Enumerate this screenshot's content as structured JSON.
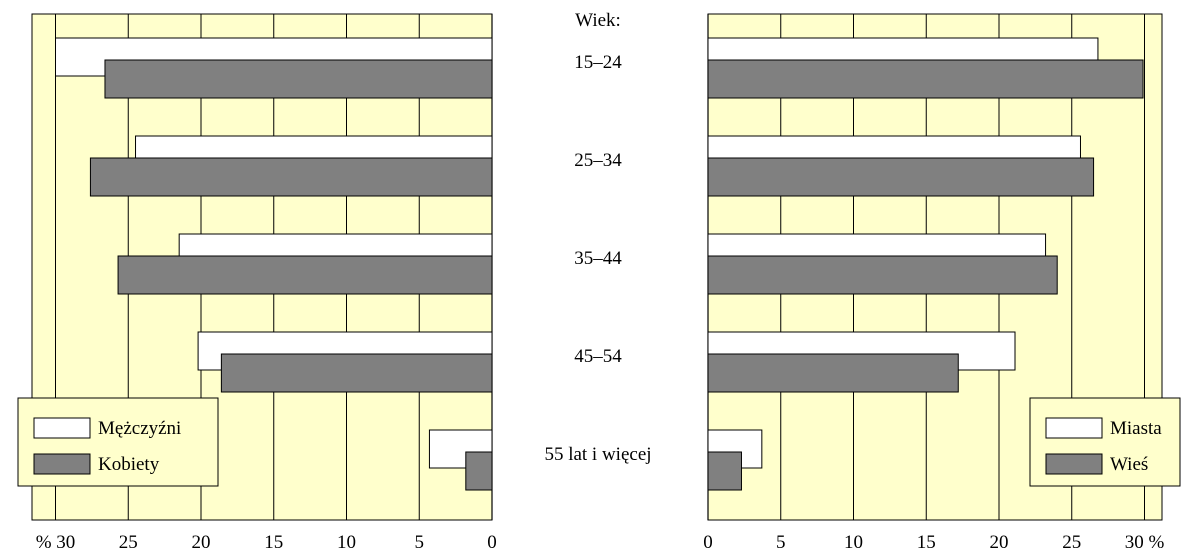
{
  "chart_data": [
    {
      "type": "bar",
      "orientation": "horizontal",
      "direction": "right-to-left",
      "categories": [
        "15–24",
        "25–34",
        "35–44",
        "45–54",
        "55 lat i więcej"
      ],
      "series": [
        {
          "name": "Mężczyźni",
          "color": "#ffffff",
          "values": [
            30.0,
            24.5,
            21.5,
            20.2,
            4.3
          ]
        },
        {
          "name": "Kobiety",
          "color": "#808080",
          "values": [
            26.6,
            27.6,
            25.7,
            18.6,
            1.8
          ]
        }
      ],
      "xlim": [
        0,
        30
      ],
      "xticks": [
        "% 30",
        "25",
        "20",
        "15",
        "10",
        "5",
        "0"
      ],
      "grid": true,
      "legend": "bottom-left",
      "background": "#ffffcc"
    },
    {
      "type": "bar",
      "orientation": "horizontal",
      "categories": [
        "15–24",
        "25–34",
        "35–44",
        "45–54",
        "55 lat i więcej"
      ],
      "series": [
        {
          "name": "Miasta",
          "color": "#ffffff",
          "values": [
            26.8,
            25.6,
            23.2,
            21.1,
            3.7
          ]
        },
        {
          "name": "Wieś",
          "color": "#808080",
          "values": [
            29.9,
            26.5,
            24.0,
            17.2,
            2.3
          ]
        }
      ],
      "xlim": [
        0,
        30
      ],
      "xticks": [
        "0",
        "5",
        "10",
        "15",
        "20",
        "25",
        "30 %"
      ],
      "grid": true,
      "legend": "bottom-right",
      "background": "#ffffcc"
    }
  ],
  "age_axis": {
    "title": "Wiek:",
    "labels": [
      "15–24",
      "25–34",
      "35–44",
      "45–54",
      "55 lat i więcej"
    ]
  }
}
